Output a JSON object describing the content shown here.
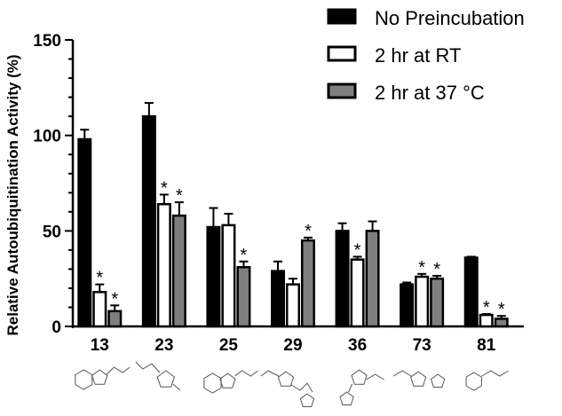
{
  "chart_data": {
    "type": "bar",
    "ylabel": "Relative Autoubiquitination Activity (%)",
    "xlabel": "",
    "ylim": [
      0,
      150
    ],
    "yticks": [
      "0",
      "50",
      "100",
      "150"
    ],
    "categories": [
      "13",
      "23",
      "25",
      "29",
      "36",
      "73",
      "81"
    ],
    "series": [
      {
        "name": "No Preincubation",
        "color": "#000000",
        "values": [
          98,
          110,
          52,
          29,
          50,
          22,
          36
        ],
        "errors": [
          5,
          7,
          10,
          5,
          4,
          1,
          0.5
        ],
        "significant": [
          false,
          false,
          false,
          false,
          false,
          false,
          false
        ]
      },
      {
        "name": "2 hr at RT",
        "color": "#ffffff",
        "values": [
          18,
          64,
          53,
          22,
          35,
          26,
          6
        ],
        "errors": [
          4,
          5,
          6,
          3,
          1.5,
          1.5,
          0.5
        ],
        "significant": [
          true,
          true,
          false,
          false,
          true,
          true,
          true
        ]
      },
      {
        "name": "2 hr at 37 °C",
        "color": "#7f7f7f",
        "values": [
          8,
          58,
          31,
          45,
          50,
          25,
          4
        ],
        "errors": [
          3,
          7,
          3,
          1.5,
          5,
          1.5,
          1.5
        ],
        "significant": [
          true,
          true,
          true,
          true,
          false,
          true,
          true
        ]
      }
    ],
    "significance_marker": "*",
    "legend_position": "top-right"
  },
  "structures": [
    "molecule-icon-13",
    "molecule-icon-23",
    "molecule-icon-25",
    "molecule-icon-29",
    "molecule-icon-36",
    "molecule-icon-73",
    "molecule-icon-81"
  ]
}
